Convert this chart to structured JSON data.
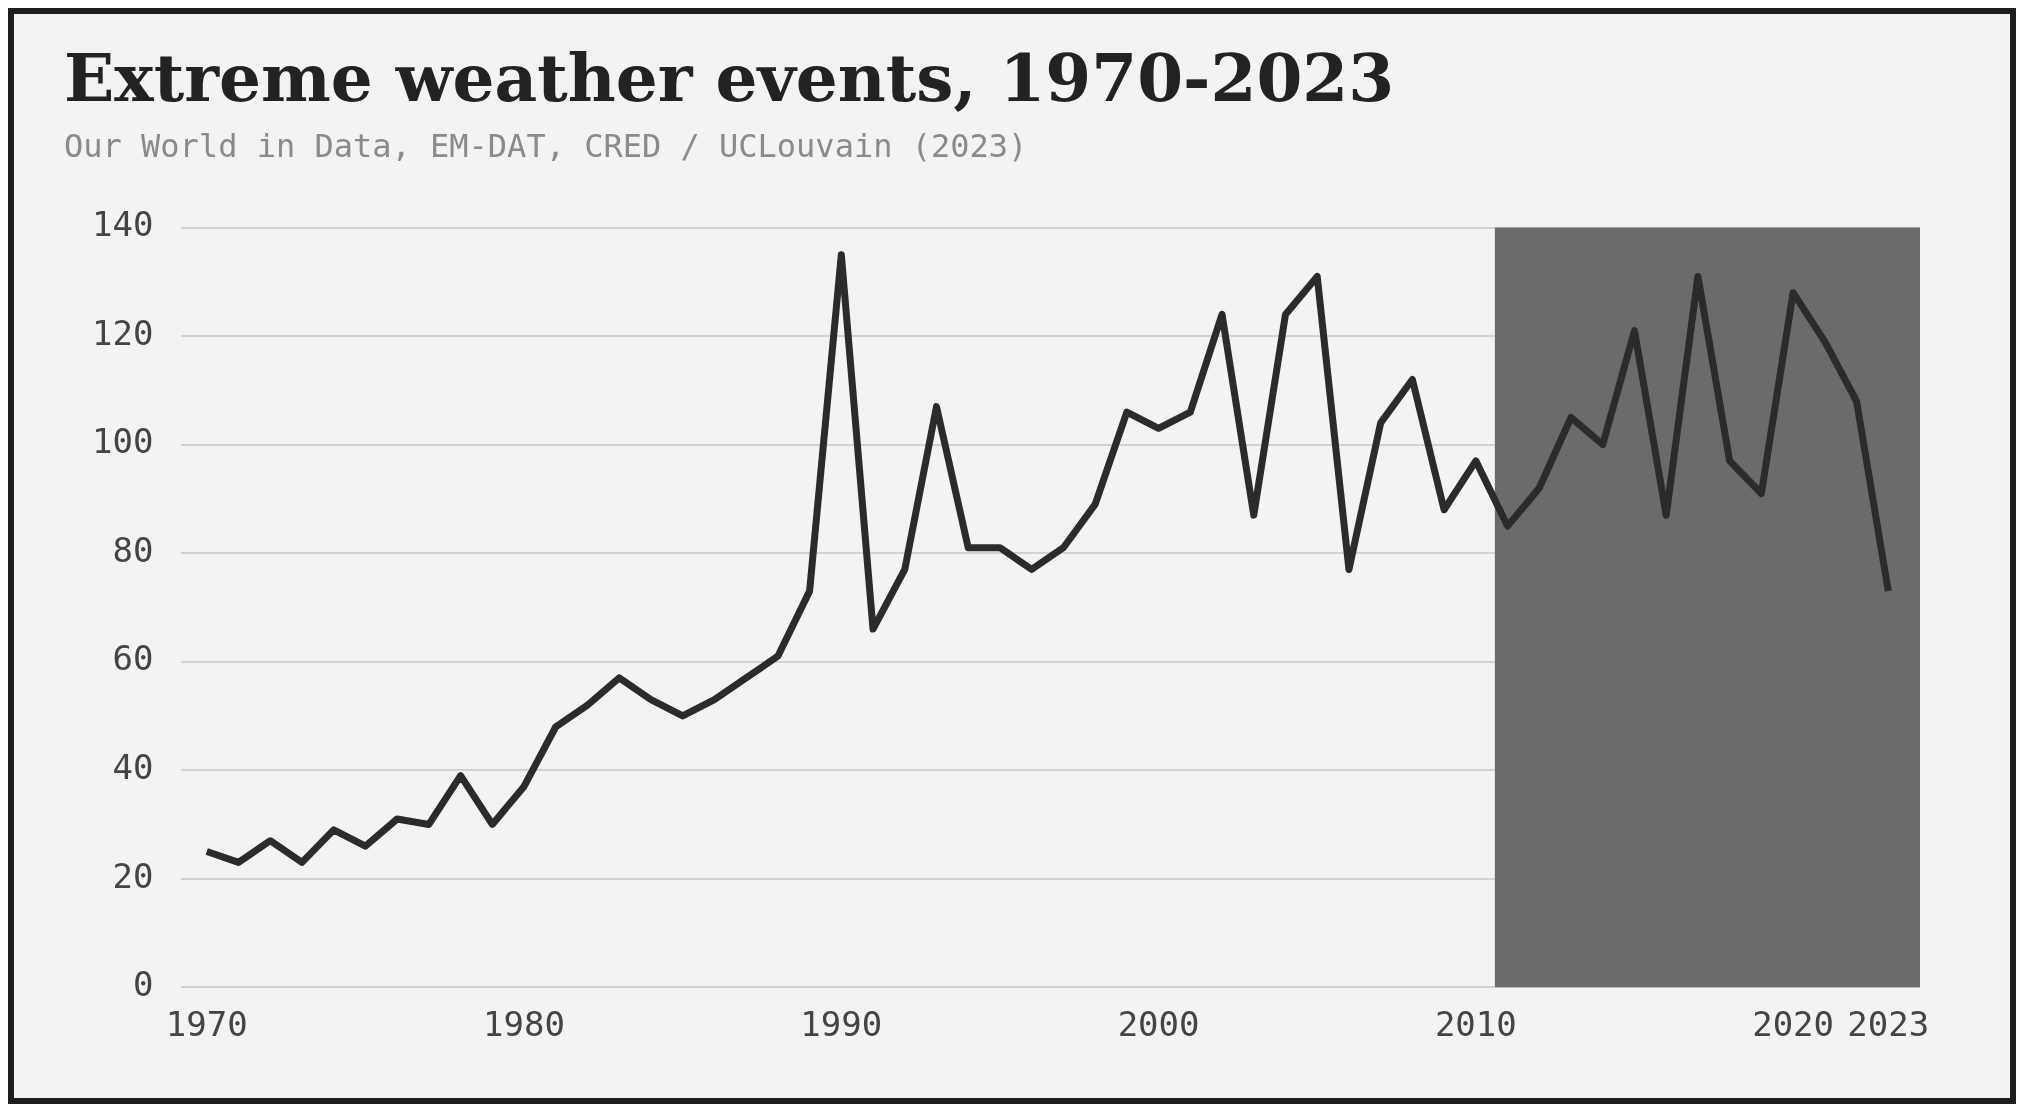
{
  "chart_data": {
    "type": "line",
    "title": "Extreme weather events, 1970-2023",
    "subtitle": "Our World in Data, EM-DAT, CRED / UCLouvain (2023)",
    "x": [
      1970,
      1971,
      1972,
      1973,
      1974,
      1975,
      1976,
      1977,
      1978,
      1979,
      1980,
      1981,
      1982,
      1983,
      1984,
      1985,
      1986,
      1987,
      1988,
      1989,
      1990,
      1991,
      1992,
      1993,
      1994,
      1995,
      1996,
      1997,
      1998,
      1999,
      2000,
      2001,
      2002,
      2003,
      2004,
      2005,
      2006,
      2007,
      2008,
      2009,
      2010,
      2011,
      2012,
      2013,
      2014,
      2015,
      2016,
      2017,
      2018,
      2019,
      2020,
      2021,
      2022,
      2023
    ],
    "series": [
      {
        "color": "#2b2b2b",
        "values": [
          25,
          23,
          27,
          23,
          29,
          26,
          31,
          30,
          39,
          30,
          37,
          48,
          52,
          57,
          53,
          50,
          53,
          57,
          61,
          73,
          135,
          66,
          77,
          107,
          81,
          81,
          77,
          81,
          89,
          106,
          103,
          106,
          124,
          87,
          124,
          131,
          77,
          104,
          112,
          88,
          97,
          85,
          92,
          105,
          100,
          121,
          87,
          131,
          97,
          91,
          128,
          119,
          108,
          73
        ]
      }
    ],
    "xlim": [
      1969.2,
      2024
    ],
    "xticks": [
      1970,
      1980,
      1990,
      2000,
      2010,
      2020,
      2023
    ],
    "ylim": [
      0,
      140
    ],
    "yticks": [
      0,
      20,
      40,
      60,
      80,
      100,
      120,
      140
    ],
    "grid": "y",
    "legend": false,
    "marker": "none",
    "line_style": "solid",
    "bands": [
      {
        "axis": "x",
        "from": 2010.6,
        "to": 2024,
        "color": "#6b6b6b"
      }
    ]
  }
}
